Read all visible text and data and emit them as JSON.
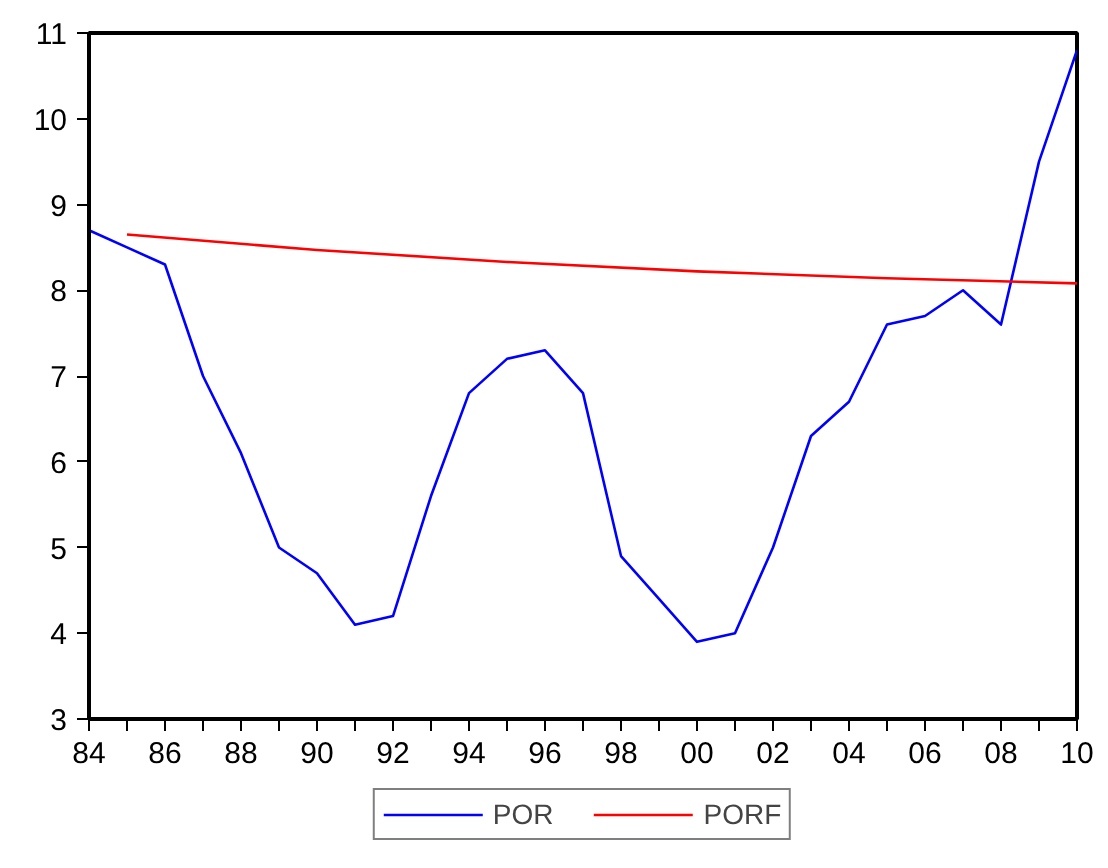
{
  "chart_data": {
    "type": "line",
    "xlim": [
      1984,
      2010
    ],
    "ylim": [
      3,
      11
    ],
    "yticks": [
      3,
      4,
      5,
      6,
      7,
      8,
      9,
      10,
      11
    ],
    "xticks": [
      {
        "value": 1984,
        "label": "84"
      },
      {
        "value": 1985,
        "label": null
      },
      {
        "value": 1986,
        "label": "86"
      },
      {
        "value": 1987,
        "label": null
      },
      {
        "value": 1988,
        "label": "88"
      },
      {
        "value": 1989,
        "label": null
      },
      {
        "value": 1990,
        "label": "90"
      },
      {
        "value": 1991,
        "label": null
      },
      {
        "value": 1992,
        "label": "92"
      },
      {
        "value": 1993,
        "label": null
      },
      {
        "value": 1994,
        "label": "94"
      },
      {
        "value": 1995,
        "label": null
      },
      {
        "value": 1996,
        "label": "96"
      },
      {
        "value": 1997,
        "label": null
      },
      {
        "value": 1998,
        "label": "98"
      },
      {
        "value": 1999,
        "label": null
      },
      {
        "value": 2000,
        "label": "00"
      },
      {
        "value": 2001,
        "label": null
      },
      {
        "value": 2002,
        "label": "02"
      },
      {
        "value": 2003,
        "label": null
      },
      {
        "value": 2004,
        "label": "04"
      },
      {
        "value": 2005,
        "label": null
      },
      {
        "value": 2006,
        "label": "06"
      },
      {
        "value": 2007,
        "label": null
      },
      {
        "value": 2008,
        "label": "08"
      },
      {
        "value": 2009,
        "label": null
      },
      {
        "value": 2010,
        "label": "10"
      }
    ],
    "series": [
      {
        "name": "POR",
        "color": "#0000ff",
        "x": [
          1984,
          1985,
          1986,
          1987,
          1988,
          1989,
          1990,
          1991,
          1992,
          1993,
          1994,
          1995,
          1996,
          1997,
          1998,
          1999,
          2000,
          2001,
          2002,
          2003,
          2004,
          2005,
          2006,
          2007,
          2008,
          2009,
          2010
        ],
        "values": [
          8.7,
          8.5,
          8.3,
          7.0,
          6.1,
          5.0,
          4.7,
          4.1,
          4.2,
          5.6,
          6.8,
          7.2,
          7.3,
          6.8,
          4.9,
          4.4,
          3.9,
          4.0,
          5.0,
          6.3,
          6.7,
          7.6,
          7.7,
          8.0,
          7.6,
          9.5,
          10.8
        ]
      },
      {
        "name": "PORF",
        "color": "#ff0000",
        "x": [
          1985,
          1990,
          1995,
          2000,
          2005,
          2010
        ],
        "values": [
          8.65,
          8.47,
          8.33,
          8.22,
          8.14,
          8.08
        ]
      }
    ],
    "legend": "bottom",
    "grid": false,
    "marker": "none",
    "line_style": "solid"
  }
}
